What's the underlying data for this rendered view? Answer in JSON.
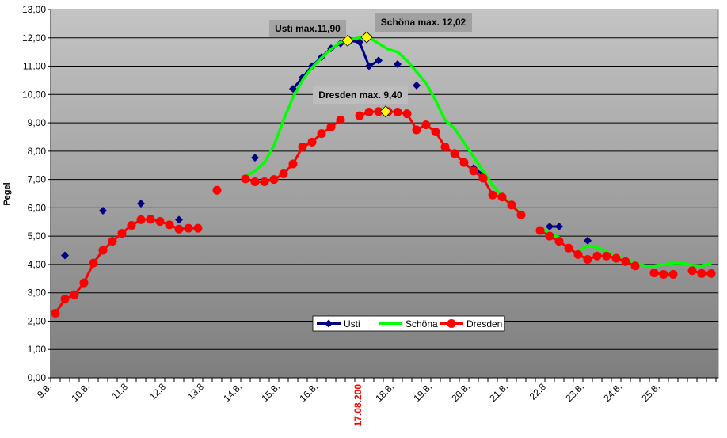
{
  "chart_data": {
    "type": "line",
    "title": "",
    "xlabel": "",
    "ylabel": "Pegel",
    "ylim": [
      0,
      13
    ],
    "y_ticks": [
      "0,00",
      "1,00",
      "2,00",
      "3,00",
      "4,00",
      "5,00",
      "6,00",
      "7,00",
      "8,00",
      "9,00",
      "10,00",
      "11,00",
      "12,00",
      "13,00"
    ],
    "x_labels": [
      "9.8.",
      "10.8.",
      "11.8",
      "12.8",
      "13.8",
      "14.8.",
      "15.8.",
      "16.8.",
      "17.08.200",
      "18.8.",
      "19.8.",
      "20.8.",
      "21.8.",
      "22.8",
      "23.8.",
      "24.8.",
      "25.8."
    ],
    "highlight_label": "17.08.200",
    "points_per_label": 4,
    "grid": true,
    "legend_position": "bottom-center",
    "series": [
      {
        "name": "Usti",
        "color": "#000080",
        "marker": "diamond",
        "values": [
          null,
          4.32,
          null,
          null,
          null,
          5.9,
          null,
          null,
          null,
          6.15,
          null,
          null,
          null,
          5.58,
          null,
          null,
          null,
          6.6,
          null,
          null,
          null,
          7.77,
          null,
          null,
          null,
          10.2,
          10.6,
          11.0,
          11.32,
          11.63,
          11.8,
          11.9,
          11.85,
          11.0,
          11.2,
          null,
          11.07,
          null,
          10.32,
          null,
          null,
          null,
          null,
          null,
          7.4,
          7.18,
          null,
          null,
          null,
          null,
          null,
          null,
          5.34,
          5.34,
          null,
          null,
          4.84,
          null,
          null,
          null,
          null,
          null,
          null,
          null,
          null,
          null,
          null,
          null,
          null,
          null
        ]
      },
      {
        "name": "Schöna",
        "color": "#00ff00",
        "marker": "none",
        "values": [
          null,
          null,
          null,
          null,
          null,
          null,
          null,
          null,
          null,
          null,
          null,
          null,
          null,
          null,
          null,
          null,
          null,
          null,
          null,
          null,
          7.1,
          7.3,
          7.6,
          8.2,
          9.1,
          9.9,
          10.5,
          10.95,
          11.3,
          11.6,
          11.85,
          11.95,
          12.0,
          12.02,
          11.8,
          11.6,
          11.5,
          11.2,
          10.8,
          10.4,
          9.8,
          9.1,
          8.8,
          8.3,
          7.8,
          7.3,
          6.8,
          6.4,
          6.1,
          5.8,
          null,
          5.3,
          5.1,
          4.95,
          null,
          4.45,
          4.67,
          4.6,
          4.45,
          4.3,
          4.2,
          4.05,
          3.95,
          3.95,
          4.0,
          4.05,
          4.05,
          3.97,
          3.95,
          4.05
        ]
      },
      {
        "name": "Dresden",
        "color": "#ff0000",
        "marker": "circle",
        "values": [
          2.28,
          2.78,
          2.93,
          3.35,
          4.05,
          4.5,
          4.82,
          5.1,
          5.38,
          5.58,
          5.6,
          5.52,
          5.4,
          5.25,
          5.28,
          5.28,
          null,
          6.62,
          null,
          null,
          7.02,
          6.92,
          6.92,
          7.0,
          7.2,
          7.55,
          8.15,
          8.32,
          8.62,
          8.85,
          9.1,
          null,
          9.25,
          9.38,
          9.4,
          9.4,
          9.38,
          9.32,
          8.75,
          8.93,
          8.68,
          8.15,
          7.92,
          7.6,
          7.3,
          7.05,
          6.45,
          6.38,
          6.1,
          5.75,
          null,
          5.2,
          5.0,
          4.82,
          4.58,
          4.35,
          4.18,
          4.3,
          4.3,
          4.22,
          4.1,
          3.95,
          null,
          3.7,
          3.65,
          3.65,
          null,
          3.78,
          3.68,
          3.68
        ]
      }
    ],
    "annotations": [
      {
        "text": "Usti max.11,90",
        "index": 31,
        "value": 11.9
      },
      {
        "text": "Schöna max. 12,02",
        "index": 33,
        "value": 12.02
      },
      {
        "text": "Dresden max. 9,40",
        "index": 35,
        "value": 9.4
      }
    ],
    "marker_highlight_color": "#ffff00"
  }
}
